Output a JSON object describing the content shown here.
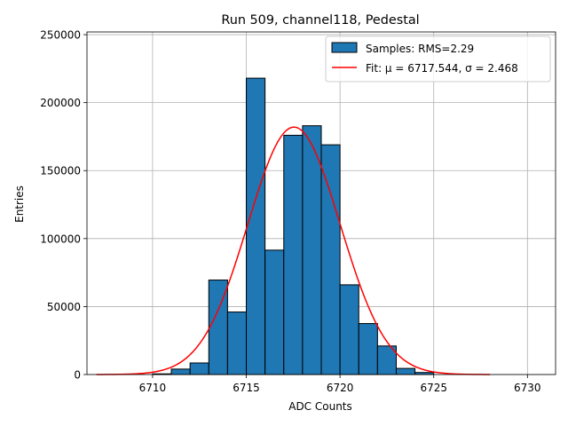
{
  "chart_data": {
    "type": "bar",
    "title": "Run 509, channel118, Pedestal",
    "xlabel": "ADC Counts",
    "ylabel": "Entries",
    "xlim": [
      6706.5,
      6731.5
    ],
    "ylim": [
      0,
      252000
    ],
    "xticks": [
      6710,
      6715,
      6720,
      6725,
      6730
    ],
    "yticks": [
      0,
      50000,
      100000,
      150000,
      200000,
      250000
    ],
    "grid": true,
    "legend_position": "top-right",
    "bin_width": 1,
    "bins": [
      {
        "x": 6710,
        "count": 500
      },
      {
        "x": 6711,
        "count": 4000
      },
      {
        "x": 6712,
        "count": 8500
      },
      {
        "x": 6713,
        "count": 69500
      },
      {
        "x": 6714,
        "count": 46000
      },
      {
        "x": 6715,
        "count": 218000
      },
      {
        "x": 6716,
        "count": 91500
      },
      {
        "x": 6717,
        "count": 176000
      },
      {
        "x": 6718,
        "count": 183000
      },
      {
        "x": 6719,
        "count": 169000
      },
      {
        "x": 6720,
        "count": 66000
      },
      {
        "x": 6721,
        "count": 37500
      },
      {
        "x": 6722,
        "count": 21000
      },
      {
        "x": 6723,
        "count": 4500
      },
      {
        "x": 6724,
        "count": 1500
      }
    ],
    "series": [
      {
        "name": "Samples: RMS=2.29",
        "type": "histogram",
        "color": "#1f77b4"
      },
      {
        "name": "Fit: μ = 6717.544, σ = 2.468",
        "type": "line",
        "color": "#ff0000",
        "mu": 6717.544,
        "sigma": 2.468,
        "amplitude": 182000,
        "x_range": [
          6707,
          6728
        ]
      }
    ]
  }
}
